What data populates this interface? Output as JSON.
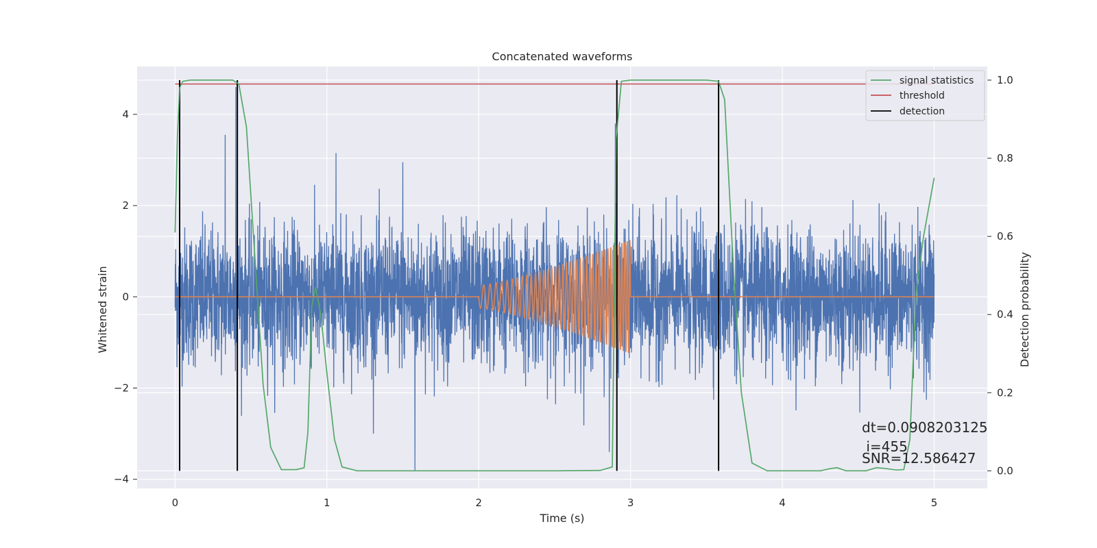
{
  "chart_data": {
    "type": "line",
    "title": "Concatenated waveforms",
    "xlabel": "Time (s)",
    "ylabel": "Whitened strain",
    "ylabel_right": "Detection probability",
    "xlim": [
      -0.25,
      5.35
    ],
    "ylim": [
      -4.2,
      5.05
    ],
    "ylim_right": [
      -0.045,
      1.035
    ],
    "x_ticks": [
      0,
      1,
      2,
      3,
      4,
      5
    ],
    "x_tick_labels": [
      "0",
      "1",
      "2",
      "3",
      "4",
      "5"
    ],
    "y_ticks": [
      -4,
      -2,
      0,
      2,
      4
    ],
    "y_tick_labels": [
      "−4",
      "−2",
      "0",
      "2",
      "4"
    ],
    "y_right_ticks": [
      0.0,
      0.2,
      0.4,
      0.6,
      0.8,
      1.0
    ],
    "y_right_tick_labels": [
      "0.0",
      "0.2",
      "0.4",
      "0.6",
      "0.8",
      "1.0"
    ],
    "grid": true,
    "legend_position": "top-right",
    "colors": {
      "strain": "#4c72b0",
      "injection": "#dd8452",
      "statistics": "#55a868",
      "threshold": "#c44e52",
      "detection": "#000000",
      "background": "#eaeaf2",
      "grid": "#ffffff"
    },
    "strain": {
      "t_start": 0,
      "t_end": 5,
      "rms": 0.75,
      "peaks": [
        [
          0.4,
          4.6
        ],
        [
          2.9,
          3.8
        ],
        [
          0.33,
          3.55
        ],
        [
          1.06,
          3.15
        ],
        [
          1.5,
          2.95
        ],
        [
          1.58,
          -3.8
        ],
        [
          2.86,
          -3.4
        ]
      ]
    },
    "injection": {
      "t_start": 2.0,
      "t_end": 3.0,
      "amp_start": 0.25,
      "amp_end": 1.25,
      "cycles": 40
    },
    "statistics": {
      "x": [
        0,
        0.015,
        0.03,
        0.05,
        0.1,
        0.38,
        0.42,
        0.47,
        0.52,
        0.58,
        0.63,
        0.7,
        0.8,
        0.85,
        0.875,
        0.9,
        0.925,
        0.96,
        1.0,
        1.05,
        1.1,
        1.2,
        1.5,
        2.0,
        2.5,
        2.8,
        2.88,
        2.905,
        2.94,
        3.0,
        3.5,
        3.58,
        3.62,
        3.68,
        3.73,
        3.8,
        3.9,
        4.25,
        4.32,
        4.36,
        4.42,
        4.55,
        4.62,
        4.68,
        4.75,
        4.8,
        4.84,
        4.88,
        4.93,
        5.0
      ],
      "y": [
        0.61,
        0.85,
        0.98,
        0.997,
        1.0,
        1.0,
        0.99,
        0.88,
        0.58,
        0.22,
        0.06,
        0.003,
        0.003,
        0.008,
        0.1,
        0.42,
        0.47,
        0.4,
        0.25,
        0.08,
        0.01,
        0.0,
        0.0,
        0.0,
        0.0,
        0.001,
        0.01,
        0.85,
        0.997,
        1.0,
        1.0,
        0.997,
        0.95,
        0.5,
        0.2,
        0.02,
        0.0,
        0.0,
        0.006,
        0.008,
        0.0,
        0.0,
        0.008,
        0.006,
        0.002,
        0.003,
        0.08,
        0.45,
        0.6,
        0.75
      ]
    },
    "threshold": {
      "value": 0.99
    },
    "detections": [
      0.03,
      0.41,
      2.91,
      3.58
    ],
    "legend": [
      {
        "label": "signal statistics",
        "color": "#55a868"
      },
      {
        "label": "threshold",
        "color": "#c44e52"
      },
      {
        "label": "detection",
        "color": "#000000"
      }
    ],
    "annotations": [
      "dt=0.0908203125",
      " i=455",
      "SNR=12.586427"
    ]
  }
}
